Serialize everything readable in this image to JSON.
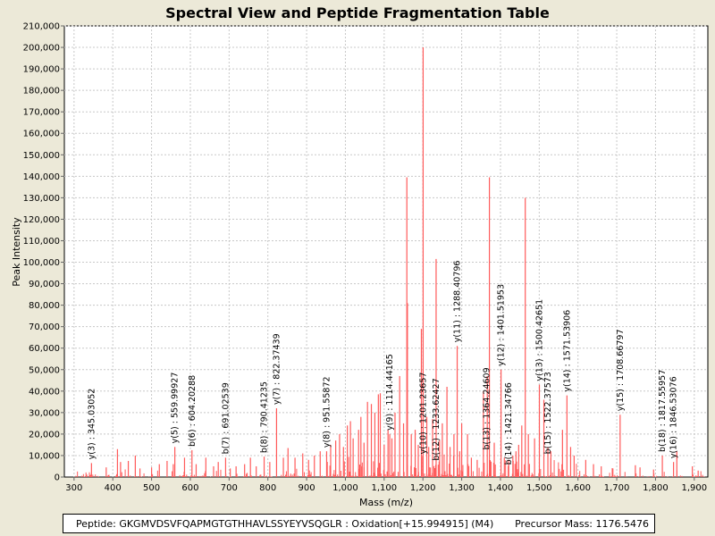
{
  "chart_data": {
    "type": "bar",
    "title": "Spectral View and Peptide Fragmentation Table",
    "xlabel": "Mass (m/z)",
    "ylabel": "Peak Intensity",
    "xlim": [
      275,
      1935
    ],
    "ylim": [
      0,
      210000
    ],
    "xticks": [
      300,
      400,
      500,
      600,
      700,
      800,
      900,
      1000,
      1100,
      1200,
      1300,
      1400,
      1500,
      1600,
      1700,
      1800,
      1900
    ],
    "xtick_labels": [
      "300",
      "400",
      "500",
      "600",
      "700",
      "800",
      "900",
      "1,000",
      "1,100",
      "1,200",
      "1,300",
      "1,400",
      "1,500",
      "1,600",
      "1,700",
      "1,800",
      "1,900"
    ],
    "yticks": [
      0,
      10000,
      20000,
      30000,
      40000,
      50000,
      60000,
      70000,
      80000,
      90000,
      100000,
      110000,
      120000,
      130000,
      140000,
      150000,
      160000,
      170000,
      180000,
      190000,
      200000,
      210000
    ],
    "ytick_labels": [
      "0",
      "10,000",
      "20,000",
      "30,000",
      "40,000",
      "50,000",
      "60,000",
      "70,000",
      "80,000",
      "90,000",
      "100,000",
      "110,000",
      "120,000",
      "130,000",
      "140,000",
      "150,000",
      "160,000",
      "170,000",
      "180,000",
      "190,000",
      "200,000",
      "210,000"
    ],
    "grid": true,
    "series_color": "#ff5a5a",
    "peaks": [
      {
        "mz": 1200.5,
        "intensity": 200000
      },
      {
        "mz": 1158.5,
        "intensity": 139500
      },
      {
        "mz": 1371.5,
        "intensity": 139500
      },
      {
        "mz": 1464.0,
        "intensity": 130000
      },
      {
        "mz": 1234.0,
        "intensity": 101500
      },
      {
        "mz": 1160.0,
        "intensity": 81000
      },
      {
        "mz": 1196.0,
        "intensity": 69000
      },
      {
        "mz": 1288.4,
        "intensity": 61000
      },
      {
        "mz": 1401.5,
        "intensity": 50000
      },
      {
        "mz": 1500.4,
        "intensity": 43000
      },
      {
        "mz": 1571.5,
        "intensity": 38000
      },
      {
        "mz": 1140.0,
        "intensity": 47000
      },
      {
        "mz": 1090.0,
        "intensity": 39000
      },
      {
        "mz": 1085.0,
        "intensity": 38500
      },
      {
        "mz": 1057.0,
        "intensity": 35000
      },
      {
        "mz": 1262.0,
        "intensity": 42000
      },
      {
        "mz": 1366.0,
        "intensity": 47000
      },
      {
        "mz": 1356.0,
        "intensity": 40000
      },
      {
        "mz": 822.4,
        "intensity": 32000
      },
      {
        "mz": 1708.7,
        "intensity": 29000
      },
      {
        "mz": 1067.0,
        "intensity": 34000
      },
      {
        "mz": 1076.0,
        "intensity": 30000
      },
      {
        "mz": 1128.0,
        "intensity": 30000
      },
      {
        "mz": 1210.0,
        "intensity": 28000
      },
      {
        "mz": 1225.0,
        "intensity": 27000
      },
      {
        "mz": 1300.0,
        "intensity": 25000
      },
      {
        "mz": 1315.0,
        "intensity": 20000
      },
      {
        "mz": 1013.0,
        "intensity": 26000
      },
      {
        "mz": 1005.0,
        "intensity": 24000
      },
      {
        "mz": 1034.0,
        "intensity": 22000
      },
      {
        "mz": 1040.0,
        "intensity": 28000
      },
      {
        "mz": 1114.4,
        "intensity": 20000
      },
      {
        "mz": 1110.0,
        "intensity": 22000
      },
      {
        "mz": 1180.0,
        "intensity": 22000
      },
      {
        "mz": 1250.0,
        "intensity": 25000
      },
      {
        "mz": 1280.0,
        "intensity": 20000
      },
      {
        "mz": 1455.0,
        "intensity": 24000
      },
      {
        "mz": 1447.0,
        "intensity": 15000
      },
      {
        "mz": 1472.0,
        "intensity": 20000
      },
      {
        "mz": 1488.0,
        "intensity": 18000
      },
      {
        "mz": 1512.0,
        "intensity": 36000
      },
      {
        "mz": 1522.4,
        "intensity": 14000
      },
      {
        "mz": 1530.0,
        "intensity": 12000
      },
      {
        "mz": 1560.0,
        "intensity": 22000
      },
      {
        "mz": 1581.0,
        "intensity": 14000
      },
      {
        "mz": 1590.0,
        "intensity": 10000
      },
      {
        "mz": 1620.0,
        "intensity": 8000
      },
      {
        "mz": 1640.0,
        "intensity": 6000
      },
      {
        "mz": 1660.0,
        "intensity": 5000
      },
      {
        "mz": 1690.0,
        "intensity": 4000
      },
      {
        "mz": 1748.0,
        "intensity": 5500
      },
      {
        "mz": 1760.0,
        "intensity": 4500
      },
      {
        "mz": 1795.0,
        "intensity": 3500
      },
      {
        "mz": 1817.6,
        "intensity": 10000
      },
      {
        "mz": 1846.5,
        "intensity": 7000
      },
      {
        "mz": 1855.0,
        "intensity": 12000
      },
      {
        "mz": 1895.0,
        "intensity": 5000
      },
      {
        "mz": 1910.0,
        "intensity": 3000
      },
      {
        "mz": 345.0,
        "intensity": 6500
      },
      {
        "mz": 383.0,
        "intensity": 4500
      },
      {
        "mz": 412.0,
        "intensity": 13000
      },
      {
        "mz": 420.0,
        "intensity": 7000
      },
      {
        "mz": 440.0,
        "intensity": 7500
      },
      {
        "mz": 458.0,
        "intensity": 10000
      },
      {
        "mz": 470.0,
        "intensity": 4000
      },
      {
        "mz": 500.0,
        "intensity": 4500
      },
      {
        "mz": 520.0,
        "intensity": 6000
      },
      {
        "mz": 540.0,
        "intensity": 7500
      },
      {
        "mz": 556.0,
        "intensity": 6000
      },
      {
        "mz": 560.0,
        "intensity": 14000
      },
      {
        "mz": 585.0,
        "intensity": 9000
      },
      {
        "mz": 604.2,
        "intensity": 12500
      },
      {
        "mz": 615.0,
        "intensity": 6000
      },
      {
        "mz": 640.0,
        "intensity": 9000
      },
      {
        "mz": 660.0,
        "intensity": 5000
      },
      {
        "mz": 672.0,
        "intensity": 7000
      },
      {
        "mz": 691.0,
        "intensity": 9000
      },
      {
        "mz": 703.0,
        "intensity": 4000
      },
      {
        "mz": 718.0,
        "intensity": 5000
      },
      {
        "mz": 740.0,
        "intensity": 6000
      },
      {
        "mz": 755.0,
        "intensity": 9000
      },
      {
        "mz": 770.0,
        "intensity": 5000
      },
      {
        "mz": 790.4,
        "intensity": 9500
      },
      {
        "mz": 805.0,
        "intensity": 7000
      },
      {
        "mz": 840.0,
        "intensity": 9000
      },
      {
        "mz": 852.0,
        "intensity": 13500
      },
      {
        "mz": 870.0,
        "intensity": 9000
      },
      {
        "mz": 890.0,
        "intensity": 11000
      },
      {
        "mz": 905.0,
        "intensity": 8000
      },
      {
        "mz": 920.0,
        "intensity": 10000
      },
      {
        "mz": 935.0,
        "intensity": 12000
      },
      {
        "mz": 951.6,
        "intensity": 12000
      },
      {
        "mz": 962.0,
        "intensity": 15000
      },
      {
        "mz": 975.0,
        "intensity": 17000
      },
      {
        "mz": 985.0,
        "intensity": 20000
      },
      {
        "mz": 995.0,
        "intensity": 14000
      },
      {
        "mz": 1020.0,
        "intensity": 18000
      },
      {
        "mz": 1048.0,
        "intensity": 16000
      },
      {
        "mz": 1100.0,
        "intensity": 15000
      },
      {
        "mz": 1120.0,
        "intensity": 18000
      },
      {
        "mz": 1150.0,
        "intensity": 25000
      },
      {
        "mz": 1170.0,
        "intensity": 20000
      },
      {
        "mz": 1188.0,
        "intensity": 15000
      },
      {
        "mz": 1215.0,
        "intensity": 14000
      },
      {
        "mz": 1243.0,
        "intensity": 17000
      },
      {
        "mz": 1270.0,
        "intensity": 14000
      },
      {
        "mz": 1295.0,
        "intensity": 12000
      },
      {
        "mz": 1325.0,
        "intensity": 9000
      },
      {
        "mz": 1340.0,
        "intensity": 8000
      },
      {
        "mz": 1384.0,
        "intensity": 16000
      },
      {
        "mz": 1410.0,
        "intensity": 9000
      },
      {
        "mz": 1421.3,
        "intensity": 8000
      },
      {
        "mz": 1432.0,
        "intensity": 10000
      },
      {
        "mz": 1440.0,
        "intensity": 12000
      }
    ],
    "annotations": [
      {
        "label": "y(3) : 345.03052",
        "mz": 345.03,
        "intensity": 6500
      },
      {
        "label": "y(5) : 559.99927",
        "mz": 560.0,
        "intensity": 14000
      },
      {
        "label": "b(6) : 604.20288",
        "mz": 604.2,
        "intensity": 12500
      },
      {
        "label": "b(7) : 691.02539",
        "mz": 691.03,
        "intensity": 9000
      },
      {
        "label": "b(8) : 790.41235",
        "mz": 790.41,
        "intensity": 9500
      },
      {
        "label": "y(7) : 822.37439",
        "mz": 822.37,
        "intensity": 32000
      },
      {
        "label": "y(8) : 951.55872",
        "mz": 951.56,
        "intensity": 12000
      },
      {
        "label": "y(9) : 1114.44165",
        "mz": 1114.44,
        "intensity": 20000
      },
      {
        "label": "y(10) : 1201.23657",
        "mz": 1201.24,
        "intensity": 9000
      },
      {
        "label": "b(12) : 1233.62427",
        "mz": 1233.62,
        "intensity": 6000
      },
      {
        "label": "y(11) : 1288.40796",
        "mz": 1288.41,
        "intensity": 61000
      },
      {
        "label": "b(13) : 1364.24609",
        "mz": 1364.25,
        "intensity": 11000
      },
      {
        "label": "y(12) : 1401.51953",
        "mz": 1401.52,
        "intensity": 50000
      },
      {
        "label": "b(14) : 1421.34766",
        "mz": 1421.35,
        "intensity": 4000
      },
      {
        "label": "y(13) : 1500.42651",
        "mz": 1500.43,
        "intensity": 43000
      },
      {
        "label": "b(15) : 1522.37573",
        "mz": 1522.38,
        "intensity": 9000
      },
      {
        "label": "y(14) : 1571.53906",
        "mz": 1571.54,
        "intensity": 38000
      },
      {
        "label": "y(15) : 1708.66797",
        "mz": 1708.67,
        "intensity": 29000
      },
      {
        "label": "b(18) : 1817.55957",
        "mz": 1817.56,
        "intensity": 10000
      },
      {
        "label": "y(16) : 1846.53076",
        "mz": 1846.53,
        "intensity": 7000
      }
    ]
  },
  "footer": {
    "peptide": "Peptide: GKGMVDSVFQAPMGTGTHHAVLSSYEYVSQGLR : Oxidation[+15.994915] (M4)",
    "precursor": "Precursor Mass: 1176.5476"
  }
}
